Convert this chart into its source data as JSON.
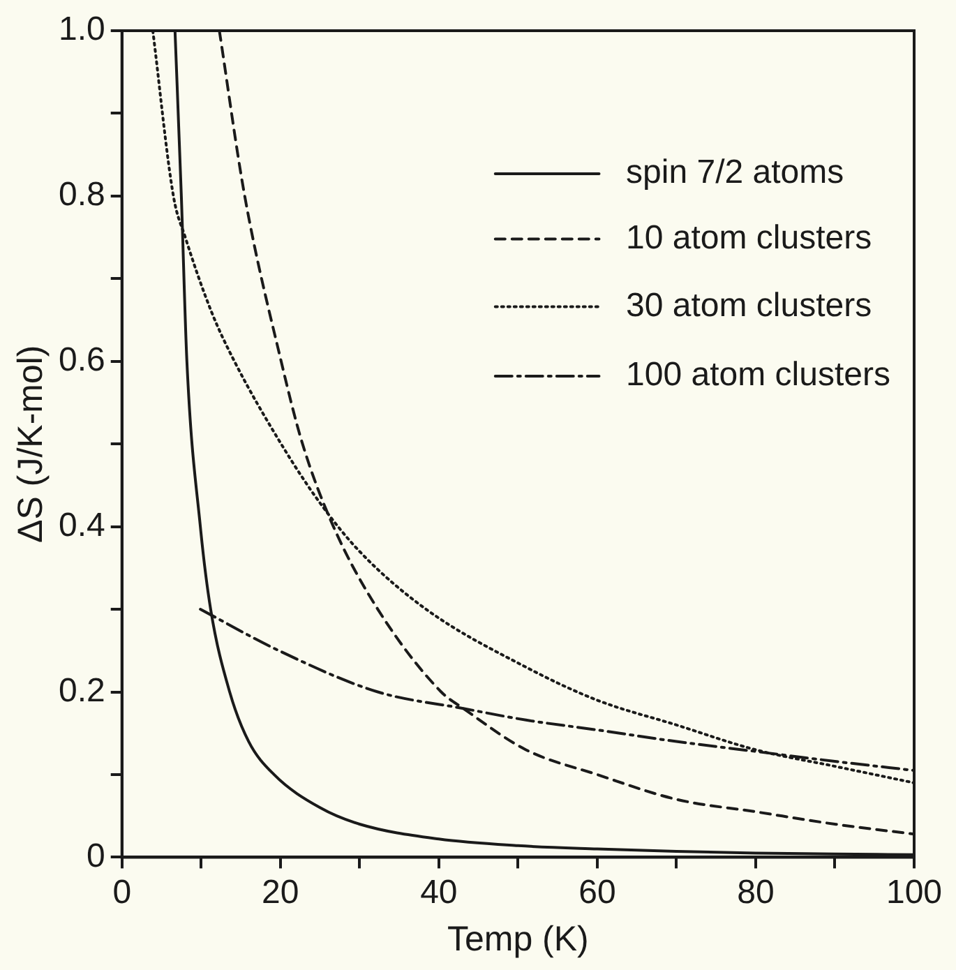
{
  "chart_data": {
    "type": "line",
    "xlabel": "Temp (K)",
    "ylabel": "ΔS (J/K-mol)",
    "xlim": [
      0,
      100
    ],
    "ylim": [
      0,
      1
    ],
    "xticks": [
      0,
      {
        "value": 10,
        "label": null
      },
      20,
      {
        "value": 30,
        "label": null
      },
      40,
      {
        "value": 50,
        "label": null
      },
      60,
      {
        "value": 70,
        "label": null
      },
      80,
      {
        "value": 90,
        "label": null
      },
      100
    ],
    "yticks": [
      0,
      {
        "value": 0.1,
        "label": null
      },
      0.2,
      {
        "value": 0.3,
        "label": null
      },
      0.4,
      {
        "value": 0.5,
        "label": null
      },
      0.6,
      {
        "value": 0.7,
        "label": null
      },
      0.8,
      {
        "value": 0.9,
        "label": null
      },
      {
        "value": 1,
        "label": "1.0"
      }
    ],
    "grid": false,
    "legend": "top right",
    "marker": "none",
    "series": [
      {
        "name": "spin 7/2 atoms",
        "color": "#1a1a1a",
        "line_style": "solid",
        "x": [
          6.7,
          7.5,
          8.2,
          9.9,
          11.2,
          13.6,
          16,
          19.2,
          25,
          30,
          40,
          50,
          60,
          70,
          80,
          90,
          100
        ],
        "values": [
          1.0,
          0.8,
          0.6,
          0.4,
          0.3,
          0.2,
          0.14,
          0.1,
          0.06,
          0.04,
          0.022,
          0.014,
          0.01,
          0.007,
          0.005,
          0.004,
          0.003
        ]
      },
      {
        "name": "10 atom clusters",
        "color": "#1a1a1a",
        "line_style": "dashed",
        "x": [
          12.3,
          15.5,
          20.1,
          22.8,
          26.7,
          32.3,
          40.3,
          43.1,
          51,
          60,
          70,
          80,
          90,
          100
        ],
        "values": [
          1.0,
          0.8,
          0.6,
          0.5,
          0.4,
          0.3,
          0.2,
          0.18,
          0.13,
          0.1,
          0.07,
          0.055,
          0.04,
          0.028
        ]
      },
      {
        "name": "30 atom clusters",
        "color": "#1a1a1a",
        "line_style": "dotted",
        "x": [
          3.9,
          6.5,
          8,
          11.3,
          14.2,
          20.1,
          24.9,
          30,
          38.4,
          51,
          60,
          70,
          80,
          90,
          100
        ],
        "values": [
          1.0,
          0.8,
          0.75,
          0.66,
          0.6,
          0.5,
          0.43,
          0.37,
          0.3,
          0.23,
          0.19,
          0.16,
          0.13,
          0.11,
          0.09
        ]
      },
      {
        "name": "100 atom clusters",
        "color": "#1a1a1a",
        "line_style": "dashdot",
        "x": [
          9.9,
          19.8,
          32.3,
          43.1,
          51,
          60,
          70,
          80,
          90,
          100
        ],
        "values": [
          0.3,
          0.25,
          0.2,
          0.18,
          0.166,
          0.154,
          0.14,
          0.128,
          0.116,
          0.105
        ]
      }
    ]
  }
}
